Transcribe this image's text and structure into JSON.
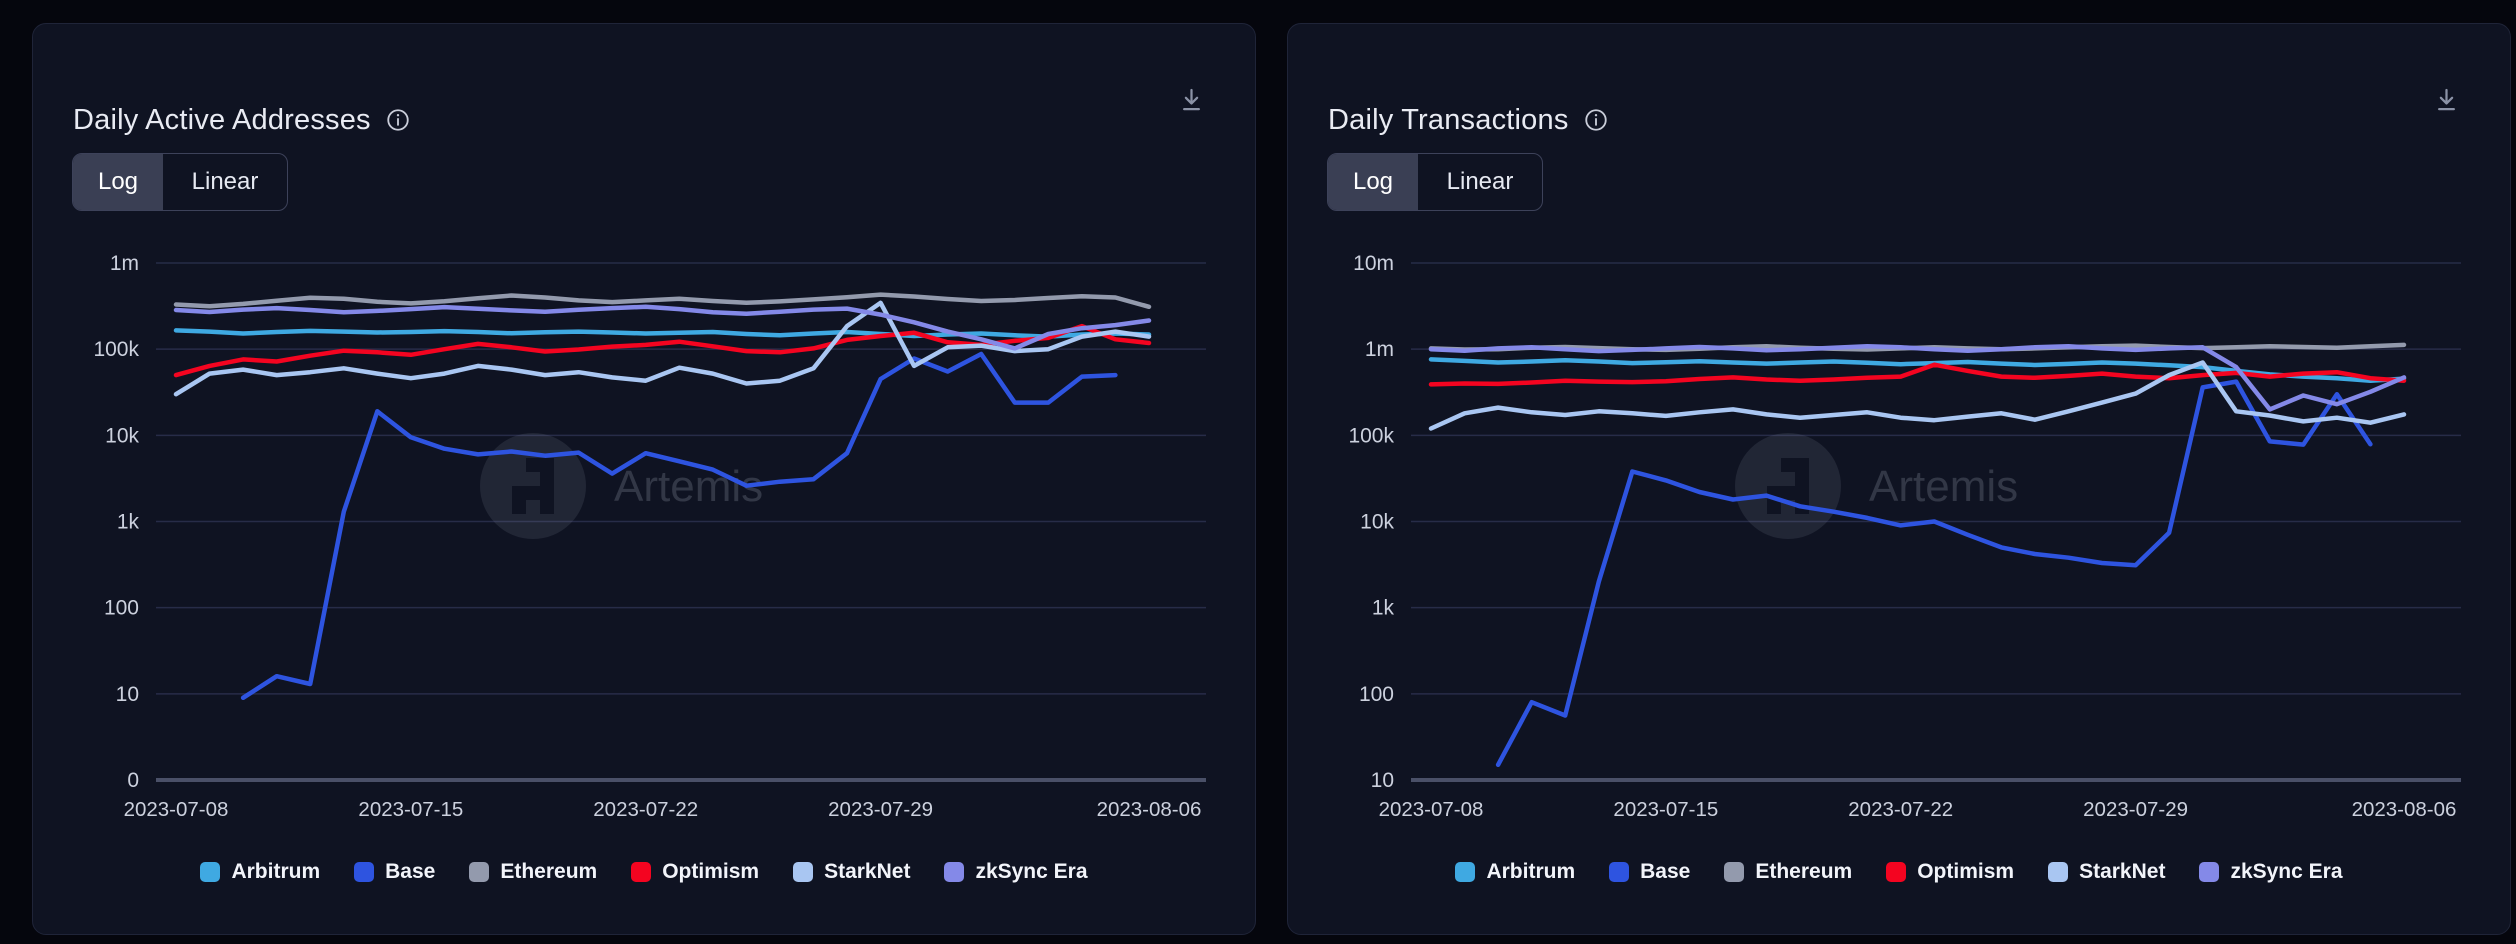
{
  "cards": [
    {
      "title": "Daily Active Addresses",
      "toggle": {
        "options": [
          "Log",
          "Linear"
        ],
        "selected": "Log"
      },
      "download_tooltip": "download",
      "watermark": "Artemis"
    },
    {
      "title": "Daily Transactions",
      "toggle": {
        "options": [
          "Log",
          "Linear"
        ],
        "selected": "Log"
      },
      "download_tooltip": "download",
      "watermark": "Artemis"
    }
  ],
  "chart_data": [
    {
      "type": "line",
      "title": "Daily Active Addresses",
      "scale": "log",
      "grid": true,
      "legend_position": "bottom",
      "y_ticks": [
        "1m",
        "100k",
        "10k",
        "1k",
        "100",
        "10"
      ],
      "y_top_exp": 6,
      "y_axis_label": "0",
      "x": [
        "2023-07-08",
        "2023-07-09",
        "2023-07-10",
        "2023-07-11",
        "2023-07-12",
        "2023-07-13",
        "2023-07-14",
        "2023-07-15",
        "2023-07-16",
        "2023-07-17",
        "2023-07-18",
        "2023-07-19",
        "2023-07-20",
        "2023-07-21",
        "2023-07-22",
        "2023-07-23",
        "2023-07-24",
        "2023-07-25",
        "2023-07-26",
        "2023-07-27",
        "2023-07-28",
        "2023-07-29",
        "2023-07-30",
        "2023-07-31",
        "2023-08-01",
        "2023-08-02",
        "2023-08-03",
        "2023-08-04",
        "2023-08-05",
        "2023-08-06"
      ],
      "x_tick_labels": [
        "2023-07-08",
        "2023-07-15",
        "2023-07-22",
        "2023-07-29",
        "2023-08-06"
      ],
      "x_tick_indices": [
        0,
        7,
        14,
        21,
        29
      ],
      "series": [
        {
          "name": "Arbitrum",
          "color": "#3FA9E2",
          "values": [
            165000,
            160000,
            152000,
            158000,
            163000,
            160000,
            156000,
            158000,
            162000,
            158000,
            153000,
            157000,
            160000,
            156000,
            152000,
            155000,
            158000,
            150000,
            145000,
            152000,
            158000,
            150000,
            142000,
            148000,
            152000,
            145000,
            140000,
            148000,
            152000,
            148000
          ]
        },
        {
          "name": "Base",
          "color": "#2E54E0",
          "values": [
            null,
            null,
            9,
            16,
            13,
            1300,
            19000,
            9500,
            7000,
            6000,
            6500,
            5800,
            6300,
            3600,
            6200,
            5000,
            4000,
            2600,
            2900,
            3100,
            6200,
            45000,
            78000,
            55000,
            88000,
            24000,
            24000,
            48000,
            50000,
            null
          ]
        },
        {
          "name": "Ethereum",
          "color": "#939AAD",
          "values": [
            330000,
            315000,
            335000,
            365000,
            395000,
            385000,
            355000,
            340000,
            360000,
            390000,
            420000,
            398000,
            368000,
            352000,
            368000,
            385000,
            362000,
            345000,
            358000,
            378000,
            400000,
            430000,
            408000,
            382000,
            362000,
            372000,
            392000,
            412000,
            398000,
            310000
          ]
        },
        {
          "name": "Optimism",
          "color": "#F40420",
          "values": [
            50000,
            64000,
            76000,
            72000,
            84000,
            96000,
            92000,
            86000,
            100000,
            115000,
            105000,
            94000,
            99000,
            107000,
            112000,
            122000,
            108000,
            95000,
            92000,
            102000,
            128000,
            142000,
            155000,
            120000,
            112000,
            125000,
            135000,
            185000,
            130000,
            118000
          ]
        },
        {
          "name": "StarkNet",
          "color": "#A9C6F2",
          "values": [
            30000,
            52000,
            58000,
            50000,
            54000,
            60000,
            52000,
            46000,
            52000,
            64000,
            58000,
            50000,
            54000,
            47000,
            43000,
            61000,
            52000,
            40000,
            43000,
            60000,
            185000,
            345000,
            64000,
            105000,
            110000,
            95000,
            100000,
            140000,
            160000,
            140000
          ]
        },
        {
          "name": "zkSync Era",
          "color": "#8489E8",
          "values": [
            285000,
            270000,
            288000,
            300000,
            285000,
            268000,
            278000,
            292000,
            308000,
            295000,
            282000,
            272000,
            286000,
            300000,
            310000,
            292000,
            268000,
            258000,
            272000,
            288000,
            296000,
            252000,
            205000,
            160000,
            130000,
            102000,
            150000,
            175000,
            190000,
            215000
          ]
        }
      ]
    },
    {
      "type": "line",
      "title": "Daily Transactions",
      "scale": "log",
      "grid": true,
      "legend_position": "bottom",
      "y_ticks": [
        "10m",
        "1m",
        "100k",
        "10k",
        "1k",
        "100"
      ],
      "y_top_exp": 7,
      "y_axis_label": "10",
      "x": [
        "2023-07-08",
        "2023-07-09",
        "2023-07-10",
        "2023-07-11",
        "2023-07-12",
        "2023-07-13",
        "2023-07-14",
        "2023-07-15",
        "2023-07-16",
        "2023-07-17",
        "2023-07-18",
        "2023-07-19",
        "2023-07-20",
        "2023-07-21",
        "2023-07-22",
        "2023-07-23",
        "2023-07-24",
        "2023-07-25",
        "2023-07-26",
        "2023-07-27",
        "2023-07-28",
        "2023-07-29",
        "2023-07-30",
        "2023-07-31",
        "2023-08-01",
        "2023-08-02",
        "2023-08-03",
        "2023-08-04",
        "2023-08-05",
        "2023-08-06"
      ],
      "x_tick_labels": [
        "2023-07-08",
        "2023-07-15",
        "2023-07-22",
        "2023-07-29",
        "2023-08-06"
      ],
      "x_tick_indices": [
        0,
        7,
        14,
        21,
        29
      ],
      "series": [
        {
          "name": "Arbitrum",
          "color": "#3FA9E2",
          "values": [
            760000,
            730000,
            700000,
            720000,
            745000,
            720000,
            690000,
            705000,
            725000,
            700000,
            680000,
            700000,
            720000,
            695000,
            670000,
            690000,
            710000,
            680000,
            655000,
            675000,
            700000,
            680000,
            650000,
            620000,
            560000,
            510000,
            480000,
            460000,
            430000,
            455000
          ]
        },
        {
          "name": "Base",
          "color": "#2E54E0",
          "values": [
            null,
            null,
            15,
            80,
            56,
            2000,
            38000,
            30000,
            22000,
            18000,
            20000,
            15000,
            13000,
            11000,
            9000,
            10000,
            7000,
            5000,
            4200,
            3800,
            3300,
            3100,
            7400,
            360000,
            420000,
            85000,
            78000,
            300000,
            79000,
            null
          ]
        },
        {
          "name": "Ethereum",
          "color": "#939AAD",
          "values": [
            1020000,
            990000,
            1000000,
            1040000,
            1060000,
            1030000,
            1000000,
            980000,
            1010000,
            1050000,
            1080000,
            1040000,
            1010000,
            990000,
            1020000,
            1050000,
            1020000,
            1000000,
            1020000,
            1050000,
            1080000,
            1100000,
            1060000,
            1030000,
            1050000,
            1080000,
            1060000,
            1040000,
            1080000,
            1120000
          ]
        },
        {
          "name": "Optimism",
          "color": "#F40420",
          "values": [
            390000,
            400000,
            395000,
            410000,
            430000,
            420000,
            415000,
            425000,
            450000,
            470000,
            445000,
            430000,
            445000,
            465000,
            480000,
            660000,
            560000,
            480000,
            465000,
            490000,
            520000,
            480000,
            460000,
            500000,
            530000,
            480000,
            520000,
            540000,
            460000,
            430000
          ]
        },
        {
          "name": "StarkNet",
          "color": "#A9C6F2",
          "values": [
            120000,
            180000,
            210000,
            185000,
            172000,
            190000,
            180000,
            168000,
            185000,
            200000,
            175000,
            160000,
            172000,
            185000,
            160000,
            150000,
            165000,
            180000,
            152000,
            190000,
            240000,
            305000,
            500000,
            700000,
            190000,
            170000,
            145000,
            160000,
            140000,
            175000
          ]
        },
        {
          "name": "zkSync Era",
          "color": "#8489E8",
          "values": [
            1000000,
            960000,
            1020000,
            1050000,
            1000000,
            950000,
            980000,
            1020000,
            1060000,
            1020000,
            970000,
            1000000,
            1040000,
            1080000,
            1050000,
            1000000,
            960000,
            1000000,
            1050000,
            1080000,
            1020000,
            980000,
            1020000,
            1050000,
            620000,
            200000,
            290000,
            230000,
            320000,
            470000
          ]
        }
      ]
    }
  ]
}
